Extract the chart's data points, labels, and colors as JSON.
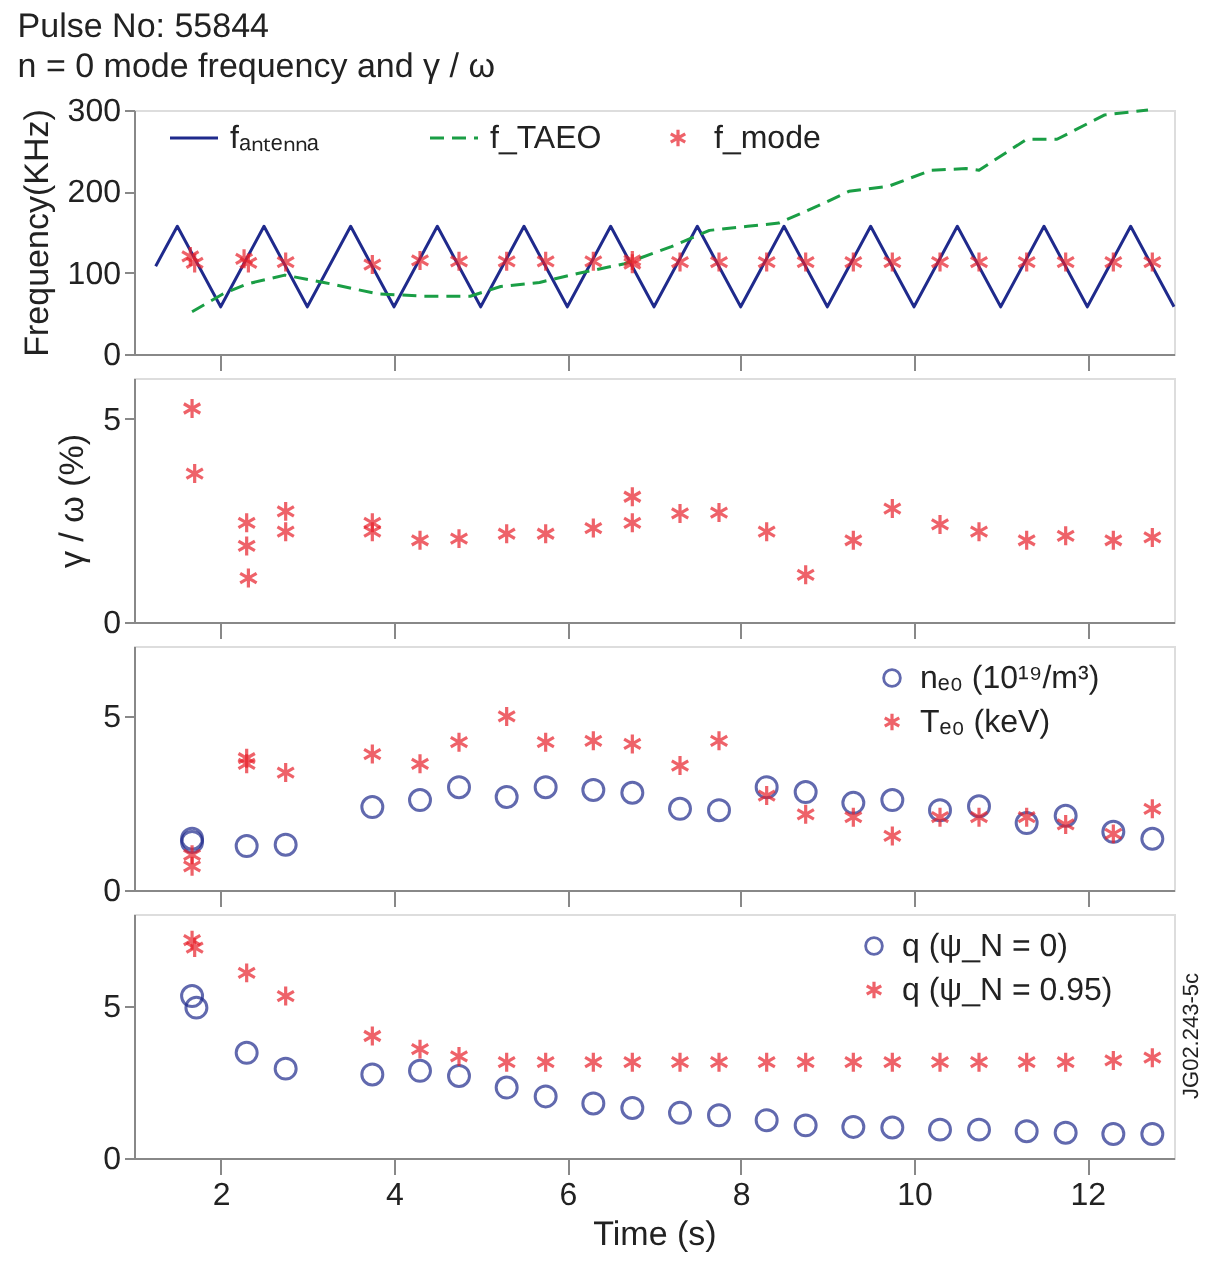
{
  "chart_data": [
    {
      "type": "line",
      "title": "Pulse No: 55844",
      "subtitle": "n = 0 mode frequency and γ / ω",
      "ylabel": "Frequency(KHz)",
      "xlim": [
        1,
        13
      ],
      "xticks": [
        2,
        4,
        6,
        8,
        10,
        12
      ],
      "ylim": [
        0,
        300
      ],
      "yticks": [
        0,
        100,
        200,
        300
      ],
      "tick_labels": "y",
      "grid": false,
      "legend": "top left",
      "series": [
        {
          "name": "fₐₙₜₑₙₙₐ",
          "type": "line",
          "color": "#1f2a8c",
          "line_style": "solid",
          "x": [
            1.25,
            1.5,
            2,
            2.5,
            3,
            3.5,
            4,
            4.5,
            5,
            5.5,
            6,
            6.5,
            7,
            7.5,
            8,
            8.5,
            9,
            9.5,
            10,
            10.5,
            11,
            11.5,
            12,
            12.5,
            13
          ],
          "values": [
            108,
            157,
            58,
            157,
            58,
            157,
            58,
            157,
            58,
            157,
            58,
            157,
            58,
            157,
            58,
            157,
            58,
            157,
            58,
            157,
            58,
            157,
            58,
            157,
            58
          ]
        },
        {
          "name": "f_TAEO",
          "type": "line",
          "color": "#1a9e45",
          "line_style": "dashed",
          "x": [
            1.67,
            2.03,
            2.3,
            2.74,
            3.19,
            3.81,
            4.35,
            4.88,
            5.23,
            5.68,
            6.12,
            6.66,
            7.2,
            7.64,
            8.08,
            8.44,
            8.89,
            9.25,
            9.7,
            10.2,
            10.6,
            10.75,
            11.3,
            11.65,
            12.2,
            12.7
          ],
          "values": [
            52,
            74,
            86,
            97,
            88,
            74,
            71,
            71,
            83,
            88,
            99,
            111,
            132,
            152,
            157,
            161,
            182,
            200,
            206,
            226,
            228,
            226,
            264,
            264,
            294,
            300
          ]
        },
        {
          "name": "f_mode",
          "type": "scatter",
          "color": "#e8202a",
          "marker": "cross",
          "x": [
            1.65,
            1.7,
            2.27,
            2.32,
            2.75,
            3.75,
            4.3,
            4.75,
            5.3,
            5.75,
            6.3,
            6.75,
            6.75,
            7.3,
            7.75,
            8.3,
            8.75,
            9.3,
            9.75,
            10.3,
            10.75,
            11.3,
            11.75,
            12.3,
            12.75
          ],
          "values": [
            120,
            112,
            117,
            112,
            113,
            110,
            115,
            114,
            114,
            114,
            114,
            115,
            111,
            113,
            113,
            113,
            113,
            113,
            113,
            113,
            113,
            113,
            113,
            113,
            113
          ]
        }
      ]
    },
    {
      "type": "scatter",
      "ylabel": "γ / ω (%)",
      "xlim": [
        1,
        13
      ],
      "xticks": [
        2,
        4,
        6,
        8,
        10,
        12
      ],
      "ylim": [
        0,
        6
      ],
      "yticks": [
        0,
        5
      ],
      "tick_labels": "y",
      "grid": false,
      "series": [
        {
          "color": "#e8202a",
          "marker": "cross",
          "x": [
            1.67,
            1.7,
            2.3,
            2.3,
            2.32,
            2.75,
            2.75,
            3.75,
            3.75,
            4.3,
            4.75,
            5.3,
            5.75,
            6.3,
            6.75,
            6.75,
            7.3,
            7.75,
            8.3,
            8.75,
            9.3,
            9.75,
            10.3,
            10.75,
            11.3,
            11.75,
            12.3,
            12.75
          ],
          "values": [
            5.25,
            3.65,
            2.44,
            1.87,
            1.08,
            2.72,
            2.22,
            2.44,
            2.22,
            2.01,
            2.05,
            2.17,
            2.17,
            2.31,
            3.08,
            2.44,
            2.67,
            2.69,
            2.22,
            1.16,
            2.01,
            2.79,
            2.4,
            2.22,
            2.01,
            2.12,
            2.01,
            2.08
          ]
        }
      ]
    },
    {
      "type": "scatter",
      "xlim": [
        1,
        13
      ],
      "xticks": [
        2,
        4,
        6,
        8,
        10,
        12
      ],
      "ylim": [
        0,
        7
      ],
      "yticks": [
        0,
        5
      ],
      "tick_labels": "y",
      "grid": false,
      "legend": "top right",
      "series": [
        {
          "name": "nₑ₀ (10¹⁹/m³)",
          "color": "#1f2a8c",
          "marker": "circle",
          "x": [
            1.67,
            1.67,
            2.3,
            2.75,
            3.75,
            4.3,
            4.75,
            5.3,
            5.75,
            6.3,
            6.75,
            7.3,
            7.75,
            8.3,
            8.75,
            9.3,
            9.75,
            10.3,
            10.75,
            11.3,
            11.75,
            12.3,
            12.75
          ],
          "values": [
            1.47,
            1.38,
            1.26,
            1.3,
            2.38,
            2.58,
            2.95,
            2.67,
            2.95,
            2.87,
            2.79,
            2.33,
            2.29,
            2.95,
            2.81,
            2.5,
            2.58,
            2.29,
            2.4,
            1.92,
            2.13,
            1.67,
            1.47
          ]
        },
        {
          "name": "Tₑ₀ (keV)",
          "color": "#e8202a",
          "marker": "cross",
          "x": [
            1.67,
            1.67,
            2.3,
            2.3,
            2.75,
            3.75,
            4.3,
            4.75,
            5.3,
            5.75,
            6.3,
            6.75,
            7.3,
            7.75,
            8.3,
            8.75,
            9.3,
            9.75,
            10.3,
            10.75,
            11.3,
            11.75,
            12.3,
            12.75
          ],
          "values": [
            1.01,
            0.68,
            3.78,
            3.62,
            3.37,
            3.9,
            3.62,
            4.24,
            4.98,
            4.24,
            4.28,
            4.19,
            3.57,
            4.28,
            2.71,
            2.17,
            2.09,
            1.55,
            2.09,
            2.09,
            2.09,
            1.88,
            1.61,
            2.33
          ]
        }
      ]
    },
    {
      "type": "scatter",
      "xlabel": "Time (s)",
      "xlim": [
        1,
        13
      ],
      "xticks": [
        2,
        4,
        6,
        8,
        10,
        12
      ],
      "ylim": [
        0,
        8
      ],
      "yticks": [
        0,
        5
      ],
      "grid": false,
      "legend": "top right",
      "annotations": [
        "JG02.243-5c"
      ],
      "series": [
        {
          "name": "q (ψ_N = 0)",
          "color": "#1f2a8c",
          "marker": "circle",
          "x": [
            1.67,
            1.72,
            2.3,
            2.75,
            3.75,
            4.3,
            4.75,
            5.3,
            5.75,
            6.3,
            6.75,
            7.3,
            7.75,
            8.3,
            8.75,
            9.3,
            9.75,
            10.3,
            10.75,
            11.3,
            11.75,
            12.3,
            12.75
          ],
          "values": [
            5.31,
            4.93,
            3.45,
            2.93,
            2.74,
            2.86,
            2.69,
            2.31,
            2.02,
            1.79,
            1.64,
            1.48,
            1.4,
            1.24,
            1.07,
            1.02,
            1.0,
            0.93,
            0.93,
            0.88,
            0.83,
            0.79,
            0.79
          ]
        },
        {
          "name": "q (ψ_N = 0.95)",
          "color": "#e8202a",
          "marker": "cross",
          "x": [
            1.67,
            1.7,
            2.3,
            2.75,
            3.75,
            4.3,
            4.75,
            5.3,
            5.75,
            6.3,
            6.75,
            7.3,
            7.75,
            8.3,
            8.75,
            9.3,
            9.75,
            10.3,
            10.75,
            11.3,
            11.75,
            12.3,
            12.75
          ],
          "values": [
            7.14,
            6.9,
            6.07,
            5.31,
            4.0,
            3.57,
            3.33,
            3.14,
            3.14,
            3.14,
            3.14,
            3.14,
            3.14,
            3.14,
            3.14,
            3.14,
            3.14,
            3.14,
            3.14,
            3.14,
            3.14,
            3.2,
            3.29
          ]
        }
      ]
    }
  ]
}
